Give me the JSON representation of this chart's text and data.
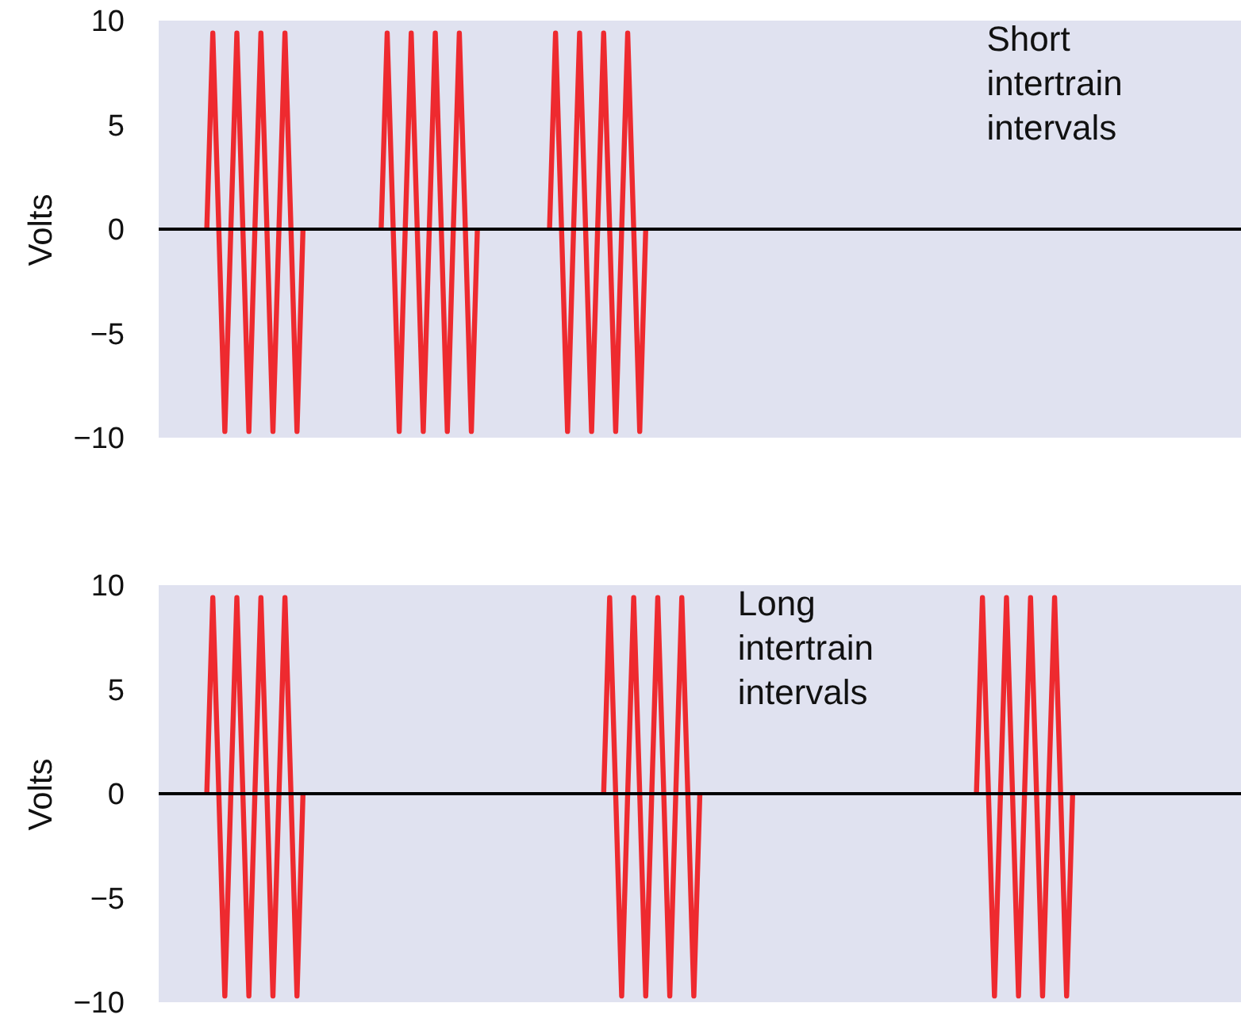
{
  "chart_data": [
    {
      "type": "line",
      "ylabel": "Volts",
      "ylim": [
        -10,
        10
      ],
      "yticks": [
        -10,
        -5,
        0,
        5,
        10
      ],
      "tick_labels": "y",
      "ref_lines": [
        {
          "axis": "y",
          "value": 0,
          "color": "#000000"
        }
      ],
      "annotations": [
        "Short intertrain intervals"
      ],
      "categories": [
        null,
        null,
        null,
        null,
        null,
        null,
        null,
        null,
        null,
        null,
        null,
        null,
        null,
        null,
        null,
        null,
        null,
        null,
        null,
        null,
        null,
        null,
        null,
        null,
        null,
        null,
        null,
        null,
        null,
        null,
        null,
        null,
        null,
        null,
        null,
        null,
        null,
        null,
        null,
        null,
        null,
        null,
        null,
        null,
        null,
        null,
        null,
        null,
        null,
        null,
        null,
        null,
        null,
        null,
        null,
        null,
        null,
        null,
        null,
        null,
        null,
        null,
        null,
        null,
        null,
        null,
        null,
        null,
        null,
        null,
        null,
        null,
        null,
        null,
        null,
        null,
        null,
        null,
        null,
        null,
        null,
        null,
        null,
        null,
        null,
        null,
        null,
        null,
        null,
        null,
        null,
        null,
        null,
        null,
        null,
        null,
        null,
        null,
        null,
        null,
        null,
        null,
        null,
        null,
        null,
        null,
        null,
        null,
        null,
        null,
        null,
        null,
        null,
        null,
        null,
        null,
        null,
        null,
        null,
        null,
        null,
        null,
        null,
        null,
        null,
        null,
        null,
        null,
        null,
        null,
        null,
        null,
        null,
        null,
        null,
        null,
        null,
        null,
        null,
        null,
        null,
        null,
        null,
        null,
        null,
        null,
        null,
        null,
        null,
        null,
        null,
        null,
        null,
        null,
        null,
        null,
        null,
        null,
        null,
        null,
        null,
        null,
        null,
        null,
        null,
        null,
        null,
        null,
        null,
        null,
        null,
        null,
        null,
        null,
        null,
        null,
        null,
        null,
        null,
        null,
        null
      ],
      "series": [
        {
          "color": "#ee2a2f",
          "values": [
            null,
            null,
            null,
            null,
            null,
            null,
            null,
            null,
            0,
            9.4,
            0,
            -9.7,
            0,
            9.4,
            0,
            -9.7,
            0,
            9.4,
            0,
            -9.7,
            0,
            9.4,
            0,
            -9.7,
            0,
            null,
            null,
            null,
            null,
            null,
            null,
            null,
            null,
            null,
            null,
            null,
            null,
            0,
            9.4,
            0,
            -9.7,
            0,
            9.4,
            0,
            -9.7,
            0,
            9.4,
            0,
            -9.7,
            0,
            9.4,
            0,
            -9.7,
            0,
            null,
            null,
            null,
            null,
            null,
            null,
            null,
            null,
            null,
            null,
            null,
            0,
            9.4,
            0,
            -9.7,
            0,
            9.4,
            0,
            -9.7,
            0,
            9.4,
            0,
            -9.7,
            0,
            9.4,
            0,
            -9.7,
            0,
            null,
            null,
            null,
            null,
            null,
            null,
            null,
            null,
            null,
            null,
            null,
            null,
            null,
            null,
            null,
            null,
            null,
            null,
            null,
            null,
            null,
            null,
            null,
            null,
            null,
            null,
            null,
            null,
            null,
            null,
            null,
            null,
            null,
            null,
            null,
            null,
            null,
            null,
            null,
            null,
            null,
            null,
            null,
            null,
            null,
            null,
            null,
            null,
            null,
            null,
            null,
            null,
            null,
            null,
            null,
            null,
            null,
            null,
            null,
            null,
            null,
            null,
            null,
            null,
            null,
            null,
            null,
            null,
            null,
            null,
            null,
            null,
            null,
            null,
            null,
            null,
            null,
            null,
            null,
            null,
            null,
            null,
            null,
            null,
            null,
            null,
            null,
            null,
            null,
            null,
            null,
            null,
            null,
            null,
            null,
            null,
            null,
            null,
            null
          ]
        }
      ]
    },
    {
      "type": "line",
      "ylabel": "Volts",
      "ylim": [
        -10,
        10
      ],
      "yticks": [
        -10,
        -5,
        0,
        5,
        10
      ],
      "tick_labels": "y",
      "ref_lines": [
        {
          "axis": "y",
          "value": 0,
          "color": "#000000"
        }
      ],
      "annotations": [
        "Long intertrain intervals"
      ],
      "categories": [
        null,
        null,
        null,
        null,
        null,
        null,
        null,
        null,
        null,
        null,
        null,
        null,
        null,
        null,
        null,
        null,
        null,
        null,
        null,
        null,
        null,
        null,
        null,
        null,
        null,
        null,
        null,
        null,
        null,
        null,
        null,
        null,
        null,
        null,
        null,
        null,
        null,
        null,
        null,
        null,
        null,
        null,
        null,
        null,
        null,
        null,
        null,
        null,
        null,
        null,
        null,
        null,
        null,
        null,
        null,
        null,
        null,
        null,
        null,
        null,
        null,
        null,
        null,
        null,
        null,
        null,
        null,
        null,
        null,
        null,
        null,
        null,
        null,
        null,
        null,
        null,
        null,
        null,
        null,
        null,
        null,
        null,
        null,
        null,
        null,
        null,
        null,
        null,
        null,
        null,
        null,
        null,
        null,
        null,
        null,
        null,
        null,
        null,
        null,
        null,
        null,
        null,
        null,
        null,
        null,
        null,
        null,
        null,
        null,
        null,
        null,
        null,
        null,
        null,
        null,
        null,
        null,
        null,
        null,
        null,
        null,
        null,
        null,
        null,
        null,
        null,
        null,
        null,
        null,
        null,
        null,
        null,
        null,
        null,
        null,
        null,
        null,
        null,
        null,
        null,
        null,
        null,
        null,
        null,
        null,
        null,
        null,
        null,
        null,
        null,
        null,
        null,
        null,
        null,
        null,
        null,
        null,
        null,
        null,
        null,
        null,
        null,
        null,
        null,
        null,
        null,
        null,
        null,
        null,
        null,
        null,
        null,
        null,
        null,
        null,
        null,
        null,
        null,
        null,
        null,
        null
      ],
      "series": [
        {
          "color": "#ee2a2f",
          "values": [
            null,
            null,
            null,
            null,
            null,
            null,
            null,
            null,
            0,
            9.4,
            0,
            -9.7,
            0,
            9.4,
            0,
            -9.7,
            0,
            9.4,
            0,
            -9.7,
            0,
            9.4,
            0,
            -9.7,
            0,
            null,
            null,
            null,
            null,
            null,
            null,
            null,
            null,
            null,
            null,
            null,
            null,
            null,
            null,
            null,
            null,
            null,
            null,
            null,
            null,
            null,
            null,
            null,
            null,
            null,
            null,
            null,
            null,
            null,
            null,
            null,
            null,
            null,
            null,
            null,
            null,
            null,
            null,
            null,
            null,
            null,
            null,
            null,
            null,
            null,
            null,
            null,
            null,
            null,
            0,
            9.4,
            0,
            -9.7,
            0,
            9.4,
            0,
            -9.7,
            0,
            9.4,
            0,
            -9.7,
            0,
            9.4,
            0,
            -9.7,
            0,
            null,
            null,
            null,
            null,
            null,
            null,
            null,
            null,
            null,
            null,
            null,
            null,
            null,
            null,
            null,
            null,
            null,
            null,
            null,
            null,
            null,
            null,
            null,
            null,
            null,
            null,
            null,
            null,
            null,
            null,
            null,
            null,
            null,
            null,
            null,
            null,
            null,
            null,
            null,
            null,
            null,
            null,
            null,
            null,
            null,
            0,
            9.4,
            0,
            -9.7,
            0,
            9.4,
            0,
            -9.7,
            0,
            9.4,
            0,
            -9.7,
            0,
            9.4,
            0,
            -9.7,
            0,
            null,
            null,
            null,
            null,
            null,
            null,
            null,
            null,
            null,
            null,
            null,
            null,
            null,
            null,
            null,
            null,
            null,
            null,
            null,
            null,
            null,
            null,
            null,
            null,
            null,
            null,
            null,
            null
          ]
        }
      ]
    }
  ]
}
